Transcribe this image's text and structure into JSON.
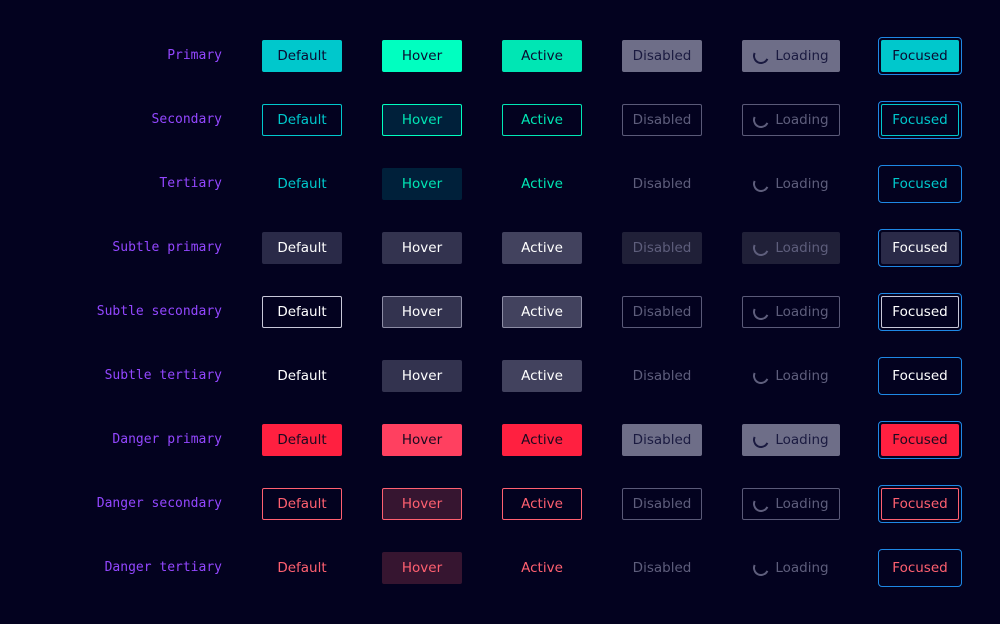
{
  "focus_ring_color": "#1e88e5",
  "label_color": "#9347ff",
  "rows": [
    {
      "label": "Primary",
      "cells": [
        {
          "text": "Default",
          "bg": "#00c8cc",
          "border": "#00c8cc",
          "fg": "#0a0a30"
        },
        {
          "text": "Hover",
          "bg": "#00ffc0",
          "border": "#00ffc0",
          "fg": "#0a0a30"
        },
        {
          "text": "Active",
          "bg": "#00e6b4",
          "border": "#00e6b4",
          "fg": "#0a0a30"
        },
        {
          "text": "Disabled",
          "bg": "#6e6e88",
          "border": "#6e6e88",
          "fg": "#1a1a40"
        },
        {
          "text": "Loading",
          "bg": "#6e6e88",
          "border": "#6e6e88",
          "fg": "#1a1a40",
          "icon": "spinner-icon"
        },
        {
          "text": "Focused",
          "bg": "#00c8cc",
          "border": "#00c8cc",
          "fg": "#0a0a30"
        }
      ]
    },
    {
      "label": "Secondary",
      "cells": [
        {
          "text": "Default",
          "bg": "transparent",
          "border": "#00c8cc",
          "fg": "#00c8cc"
        },
        {
          "text": "Hover",
          "bg": "#00203a",
          "border": "#00ffc0",
          "fg": "#00e6b4"
        },
        {
          "text": "Active",
          "bg": "transparent",
          "border": "#00e6b4",
          "fg": "#00e6b4"
        },
        {
          "text": "Disabled",
          "bg": "transparent",
          "border": "#5a5a78",
          "fg": "#5e5e7c"
        },
        {
          "text": "Loading",
          "bg": "transparent",
          "border": "#5a5a78",
          "fg": "#5e5e7c",
          "icon": "spinner-icon"
        },
        {
          "text": "Focused",
          "bg": "transparent",
          "border": "#00c8cc",
          "fg": "#00c8cc"
        }
      ]
    },
    {
      "label": "Tertiary",
      "cells": [
        {
          "text": "Default",
          "bg": "transparent",
          "border": "transparent",
          "fg": "#00c8cc"
        },
        {
          "text": "Hover",
          "bg": "#00203a",
          "border": "#00203a",
          "fg": "#00e6b4"
        },
        {
          "text": "Active",
          "bg": "transparent",
          "border": "transparent",
          "fg": "#00e6b4"
        },
        {
          "text": "Disabled",
          "bg": "transparent",
          "border": "transparent",
          "fg": "#5e5e7c"
        },
        {
          "text": "Loading",
          "bg": "transparent",
          "border": "transparent",
          "fg": "#5e5e7c",
          "icon": "spinner-icon"
        },
        {
          "text": "Focused",
          "bg": "transparent",
          "border": "transparent",
          "fg": "#00c8cc",
          "plain": true
        }
      ]
    },
    {
      "label": "Subtle primary",
      "cells": [
        {
          "text": "Default",
          "bg": "#2a2a48",
          "border": "#2a2a48",
          "fg": "#ffffff"
        },
        {
          "text": "Hover",
          "bg": "#33334f",
          "border": "#33334f",
          "fg": "#ffffff"
        },
        {
          "text": "Active",
          "bg": "#42425e",
          "border": "#42425e",
          "fg": "#ffffff"
        },
        {
          "text": "Disabled",
          "bg": "#202038",
          "border": "#202038",
          "fg": "#5e5e7c"
        },
        {
          "text": "Loading",
          "bg": "#202038",
          "border": "#202038",
          "fg": "#5e5e7c",
          "icon": "spinner-icon"
        },
        {
          "text": "Focused",
          "bg": "#2a2a48",
          "border": "#2a2a48",
          "fg": "#ffffff"
        }
      ]
    },
    {
      "label": "Subtle secondary",
      "cells": [
        {
          "text": "Default",
          "bg": "transparent",
          "border": "#c8c8d8",
          "fg": "#ffffff"
        },
        {
          "text": "Hover",
          "bg": "#33334f",
          "border": "#8c8ca4",
          "fg": "#ffffff"
        },
        {
          "text": "Active",
          "bg": "#42425e",
          "border": "#8c8ca4",
          "fg": "#ffffff"
        },
        {
          "text": "Disabled",
          "bg": "transparent",
          "border": "#5a5a78",
          "fg": "#5e5e7c"
        },
        {
          "text": "Loading",
          "bg": "transparent",
          "border": "#5a5a78",
          "fg": "#5e5e7c",
          "icon": "spinner-icon"
        },
        {
          "text": "Focused",
          "bg": "transparent",
          "border": "#c8c8d8",
          "fg": "#ffffff"
        }
      ]
    },
    {
      "label": "Subtle tertiary",
      "cells": [
        {
          "text": "Default",
          "bg": "transparent",
          "border": "transparent",
          "fg": "#ffffff"
        },
        {
          "text": "Hover",
          "bg": "#33334f",
          "border": "#33334f",
          "fg": "#ffffff"
        },
        {
          "text": "Active",
          "bg": "#42425e",
          "border": "#42425e",
          "fg": "#ffffff"
        },
        {
          "text": "Disabled",
          "bg": "transparent",
          "border": "transparent",
          "fg": "#5e5e7c"
        },
        {
          "text": "Loading",
          "bg": "transparent",
          "border": "transparent",
          "fg": "#5e5e7c",
          "icon": "spinner-icon"
        },
        {
          "text": "Focused",
          "bg": "transparent",
          "border": "transparent",
          "fg": "#ffffff",
          "plain": true
        }
      ]
    },
    {
      "label": "Danger primary",
      "cells": [
        {
          "text": "Default",
          "bg": "#ff2040",
          "border": "#ff2040",
          "fg": "#1a0a20"
        },
        {
          "text": "Hover",
          "bg": "#ff4060",
          "border": "#ff4060",
          "fg": "#1a0a20"
        },
        {
          "text": "Active",
          "bg": "#ff2040",
          "border": "#ff2040",
          "fg": "#1a0a20"
        },
        {
          "text": "Disabled",
          "bg": "#6e6e88",
          "border": "#6e6e88",
          "fg": "#1a1a40"
        },
        {
          "text": "Loading",
          "bg": "#6e6e88",
          "border": "#6e6e88",
          "fg": "#1a1a40",
          "icon": "spinner-icon"
        },
        {
          "text": "Focused",
          "bg": "#ff2040",
          "border": "#ff2040",
          "fg": "#1a0a20"
        }
      ]
    },
    {
      "label": "Danger secondary",
      "cells": [
        {
          "text": "Default",
          "bg": "transparent",
          "border": "#ff6070",
          "fg": "#ff6070"
        },
        {
          "text": "Hover",
          "bg": "#361530",
          "border": "#ff6070",
          "fg": "#ff6070"
        },
        {
          "text": "Active",
          "bg": "transparent",
          "border": "#ff6070",
          "fg": "#ff6070"
        },
        {
          "text": "Disabled",
          "bg": "transparent",
          "border": "#5a5a78",
          "fg": "#5e5e7c"
        },
        {
          "text": "Loading",
          "bg": "transparent",
          "border": "#5a5a78",
          "fg": "#5e5e7c",
          "icon": "spinner-icon"
        },
        {
          "text": "Focused",
          "bg": "transparent",
          "border": "#ff6070",
          "fg": "#ff6070"
        }
      ]
    },
    {
      "label": "Danger tertiary",
      "cells": [
        {
          "text": "Default",
          "bg": "transparent",
          "border": "transparent",
          "fg": "#ff6070"
        },
        {
          "text": "Hover",
          "bg": "#361530",
          "border": "#361530",
          "fg": "#ff6070"
        },
        {
          "text": "Active",
          "bg": "transparent",
          "border": "transparent",
          "fg": "#ff6070"
        },
        {
          "text": "Disabled",
          "bg": "transparent",
          "border": "transparent",
          "fg": "#5e5e7c"
        },
        {
          "text": "Loading",
          "bg": "transparent",
          "border": "transparent",
          "fg": "#5e5e7c",
          "icon": "spinner-icon"
        },
        {
          "text": "Focused",
          "bg": "transparent",
          "border": "transparent",
          "fg": "#ff6070",
          "plain": true
        }
      ]
    }
  ]
}
